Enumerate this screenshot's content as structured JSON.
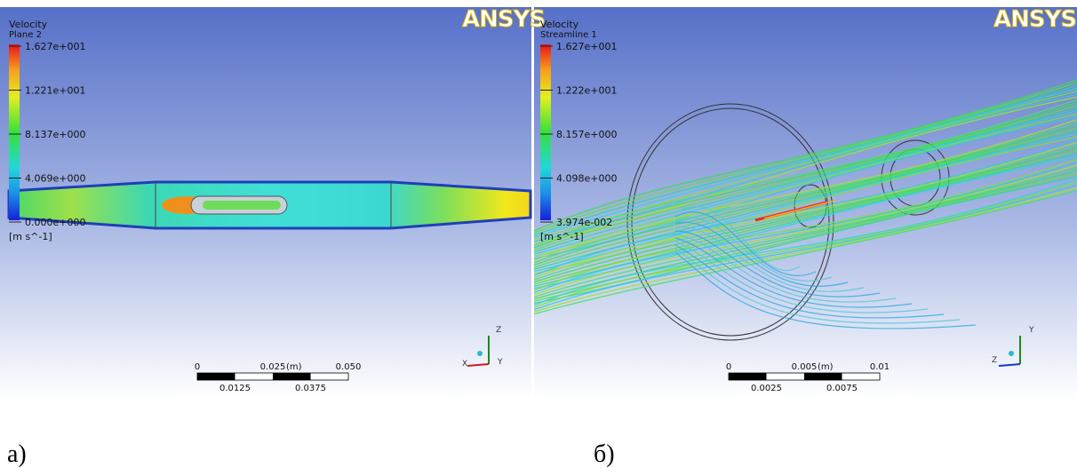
{
  "panels": [
    {
      "legend": {
        "variable": "Velocity",
        "location": "Plane 2",
        "labels": [
          "1.627e+001",
          "1.221e+001",
          "8.137e+000",
          "4.069e+000",
          "0.000e+000"
        ],
        "unit": "[m s^-1]"
      },
      "logo": "ANSYS",
      "scale": {
        "top": [
          "0",
          "0.025",
          "0.050",
          "(m)"
        ],
        "bottom": [
          "0.0125",
          "0.0375"
        ]
      },
      "axes": [
        "Z",
        "X",
        "Y"
      ],
      "caption": "а)"
    },
    {
      "legend": {
        "variable": "Velocity",
        "location": "Streamline 1",
        "labels": [
          "1.627e+001",
          "1.222e+001",
          "8.157e+000",
          "4.098e+000",
          "3.974e-002"
        ],
        "unit": "[m s^-1]"
      },
      "logo": "ANSYS",
      "scale": {
        "top": [
          "0",
          "0.005",
          "0.01",
          "(m)"
        ],
        "bottom": [
          "0.0025",
          "0.0075"
        ]
      },
      "axes": [
        "Y",
        "Z"
      ],
      "caption": "б)"
    }
  ]
}
